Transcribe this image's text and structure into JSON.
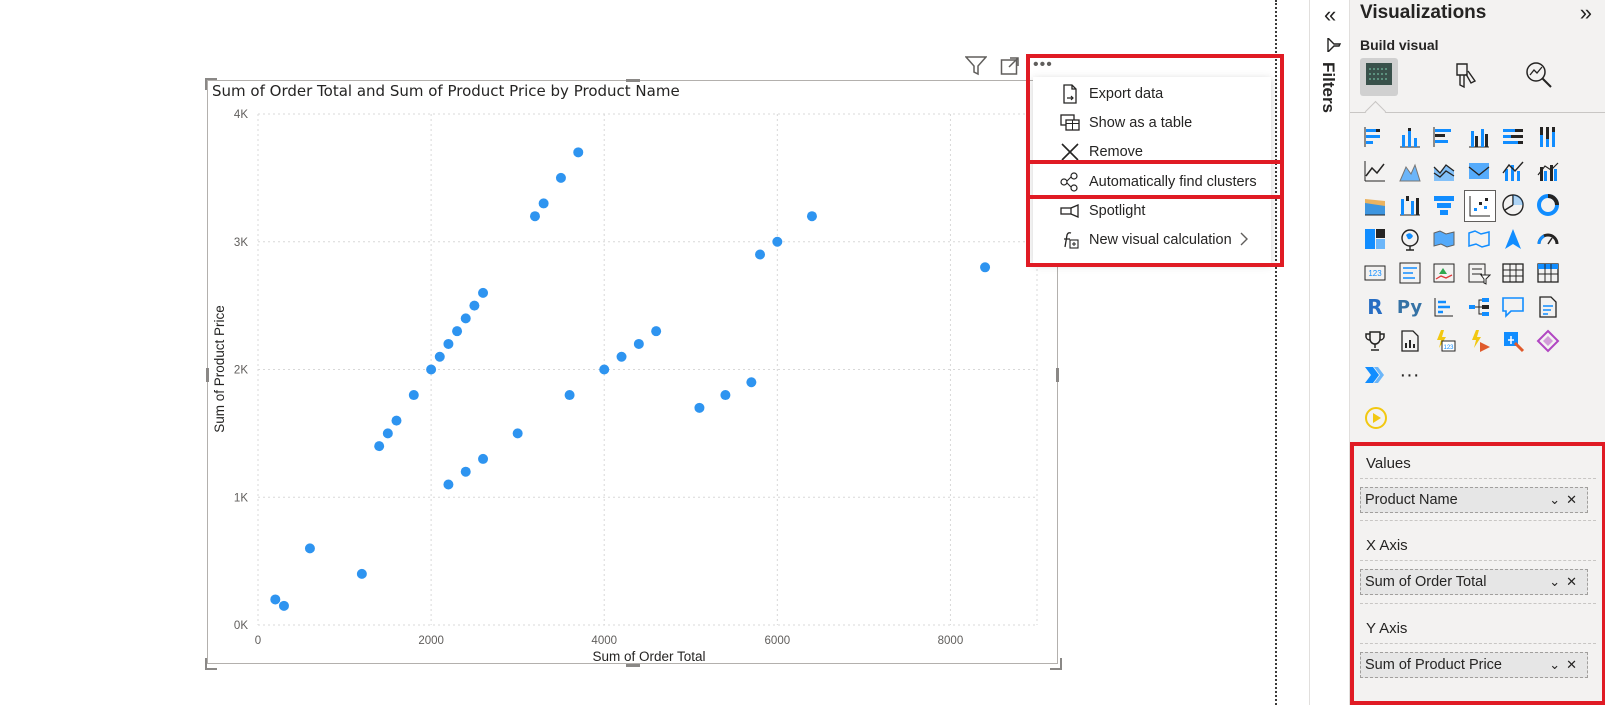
{
  "chart": {
    "title": "Sum of Order Total and Sum of Product Price by Product Name"
  },
  "chart_data": {
    "type": "scatter",
    "title": "Sum of Order Total and Sum of Product Price by Product Name",
    "xlabel": "Sum of Order Total",
    "ylabel": "Sum of Product Price",
    "xlim": [
      0,
      9000
    ],
    "ylim": [
      0,
      4000
    ],
    "x_ticks": [
      "0",
      "2000",
      "4000",
      "6000",
      "8000"
    ],
    "y_ticks": [
      "0K",
      "1K",
      "2K",
      "3K",
      "4K"
    ],
    "grid": true,
    "point_color": "#2e94f0",
    "points": [
      {
        "x": 200,
        "y": 200
      },
      {
        "x": 300,
        "y": 150
      },
      {
        "x": 600,
        "y": 600
      },
      {
        "x": 1200,
        "y": 400
      },
      {
        "x": 1400,
        "y": 1400
      },
      {
        "x": 1500,
        "y": 1500
      },
      {
        "x": 1600,
        "y": 1600
      },
      {
        "x": 1800,
        "y": 1800
      },
      {
        "x": 2000,
        "y": 2000
      },
      {
        "x": 2100,
        "y": 2100
      },
      {
        "x": 2200,
        "y": 2200
      },
      {
        "x": 2300,
        "y": 2300
      },
      {
        "x": 2400,
        "y": 2400
      },
      {
        "x": 2500,
        "y": 2500
      },
      {
        "x": 2600,
        "y": 2600
      },
      {
        "x": 2200,
        "y": 1100
      },
      {
        "x": 2400,
        "y": 1200
      },
      {
        "x": 2600,
        "y": 1300
      },
      {
        "x": 3000,
        "y": 1500
      },
      {
        "x": 3200,
        "y": 3200
      },
      {
        "x": 3300,
        "y": 3300
      },
      {
        "x": 3500,
        "y": 3500
      },
      {
        "x": 3700,
        "y": 3700
      },
      {
        "x": 3600,
        "y": 1800
      },
      {
        "x": 4000,
        "y": 2000
      },
      {
        "x": 4200,
        "y": 2100
      },
      {
        "x": 4400,
        "y": 2200
      },
      {
        "x": 4600,
        "y": 2300
      },
      {
        "x": 5100,
        "y": 1700
      },
      {
        "x": 5400,
        "y": 1800
      },
      {
        "x": 5700,
        "y": 1900
      },
      {
        "x": 5800,
        "y": 2900
      },
      {
        "x": 6000,
        "y": 3000
      },
      {
        "x": 6400,
        "y": 3200
      },
      {
        "x": 8400,
        "y": 2800
      }
    ]
  },
  "context_menu": {
    "items": [
      {
        "label": "Export data",
        "icon": "export-icon"
      },
      {
        "label": "Show as a table",
        "icon": "table-view-icon"
      },
      {
        "label": "Remove",
        "icon": "close-icon"
      },
      {
        "label": "Automatically find clusters",
        "icon": "clusters-icon"
      },
      {
        "label": "Spotlight",
        "icon": "spotlight-icon"
      },
      {
        "label": "New visual calculation",
        "icon": "visual-calculation-icon"
      }
    ]
  },
  "filters_pane": {
    "label": "Filters"
  },
  "viz_pane": {
    "title": "Visualizations",
    "build_label": "Build visual",
    "more_glyph": "···",
    "r_label": "R",
    "py_label": "Py",
    "wells": {
      "values_label": "Values",
      "values_field": "Product Name",
      "x_label": "X Axis",
      "x_field": "Sum of Order Total",
      "y_label": "Y Axis",
      "y_field": "Sum of Product Price"
    }
  },
  "colors": {
    "accent": "#2e94f0",
    "highlight": "#e01b24",
    "pane_bg": "#f3f2f1"
  }
}
